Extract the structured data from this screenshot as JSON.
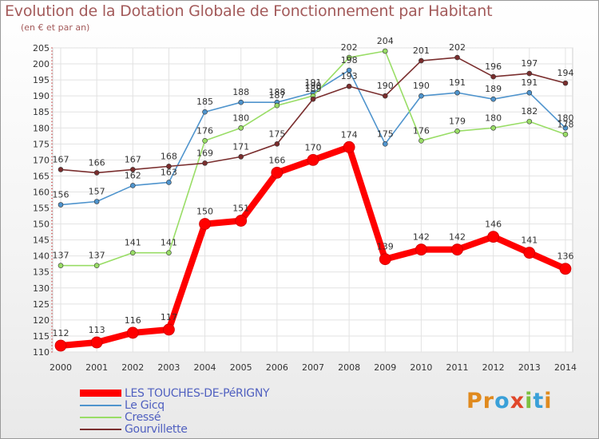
{
  "title": "Evolution de la Dotation Globale de Fonctionnement par Habitant",
  "subtitle": "(en € et par an)",
  "logo": {
    "text": "Proxiti",
    "letters": [
      "P",
      "r",
      "o",
      "x",
      "i",
      "t",
      "i"
    ],
    "colors": [
      "#e08a1e",
      "#e08a1e",
      "#3aa0d8",
      "#e0472a",
      "#7cc040",
      "#3aa0d8",
      "#e08a1e"
    ]
  },
  "chart_data": {
    "type": "line",
    "title": "Evolution de la Dotation Globale de Fonctionnement par Habitant",
    "subtitle": "(en € et par an)",
    "xlabel": "",
    "ylabel": "",
    "x": [
      2000,
      2001,
      2002,
      2003,
      2004,
      2005,
      2006,
      2007,
      2008,
      2009,
      2010,
      2011,
      2012,
      2013,
      2014
    ],
    "ylim": [
      110,
      205
    ],
    "ytick_step": 5,
    "grid": true,
    "legend_position": "bottom-left",
    "series": [
      {
        "name": "LES TOUCHES-DE-PéRIGNY",
        "color": "#ff0000",
        "thick": true,
        "values": [
          112,
          113,
          116,
          117,
          150,
          151,
          166,
          170,
          174,
          139,
          142,
          142,
          146,
          141,
          136
        ]
      },
      {
        "name": "Le Gicq",
        "color": "#4f94cd",
        "thick": false,
        "values": [
          156,
          157,
          162,
          163,
          185,
          188,
          188,
          191,
          198,
          175,
          190,
          191,
          189,
          191,
          180
        ]
      },
      {
        "name": "Cressé",
        "color": "#99dd66",
        "thick": false,
        "values": [
          137,
          137,
          141,
          141,
          176,
          180,
          187,
          190,
          202,
          204,
          176,
          179,
          180,
          182,
          178
        ]
      },
      {
        "name": "Gourvillette",
        "color": "#7a2e2e",
        "thick": false,
        "values": [
          167,
          166,
          167,
          168,
          169,
          171,
          175,
          189,
          193,
          190,
          201,
          202,
          196,
          197,
          194
        ]
      }
    ]
  }
}
